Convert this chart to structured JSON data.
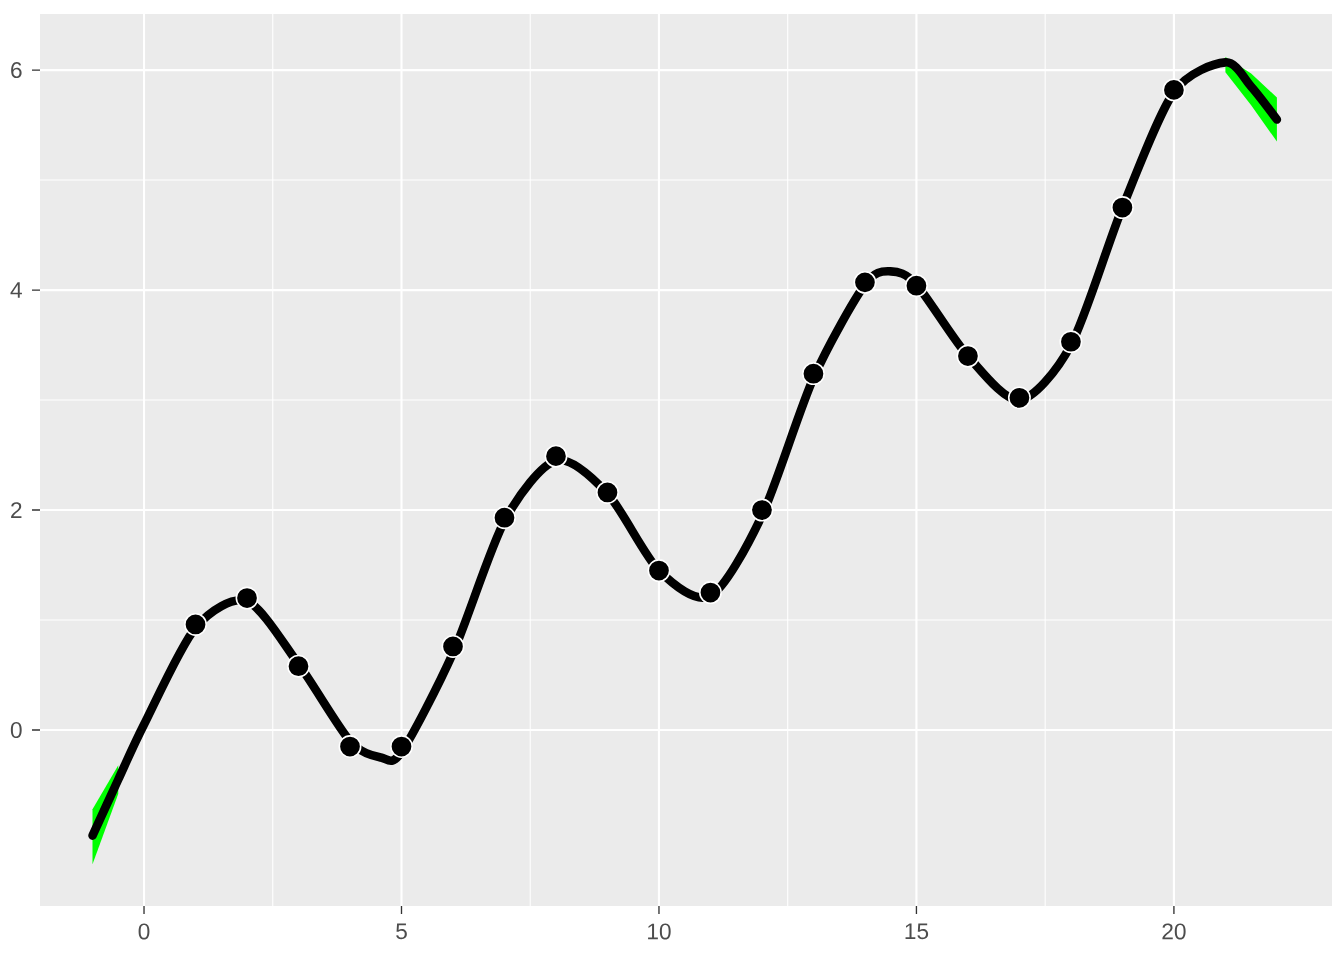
{
  "chart_data": {
    "type": "scatter",
    "xlim": [
      -2.02,
      23.07
    ],
    "ylim": [
      -1.6,
      6.51
    ],
    "xticks": [
      0,
      5,
      10,
      15,
      20
    ],
    "yticks": [
      0,
      2,
      4,
      6
    ],
    "grid": true,
    "series": [
      {
        "type": "line",
        "color": "#000000",
        "line_style": "solid",
        "marker": "none",
        "x": [
          -1,
          -0.5,
          0,
          1,
          2,
          3,
          4,
          4.6,
          5,
          6,
          7,
          8,
          9,
          10,
          11,
          12,
          13,
          14,
          14.5,
          15,
          16,
          17,
          18,
          19,
          20,
          21,
          21.5,
          22
        ],
        "values": [
          -0.96,
          -0.45,
          0.05,
          0.93,
          1.17,
          0.6,
          -0.1,
          -0.25,
          -0.2,
          0.7,
          1.9,
          2.45,
          2.15,
          1.45,
          1.22,
          1.95,
          3.2,
          4.05,
          4.17,
          4.05,
          3.4,
          3.0,
          3.5,
          4.75,
          5.8,
          6.07,
          5.85,
          5.55
        ],
        "lower": [
          -1.22,
          -0.58,
          null,
          null,
          null,
          null,
          null,
          null,
          null,
          null,
          null,
          null,
          null,
          null,
          null,
          null,
          null,
          null,
          null,
          null,
          null,
          null,
          null,
          null,
          null,
          5.98,
          5.68,
          5.35
        ],
        "upper": [
          -0.72,
          -0.32,
          null,
          null,
          null,
          null,
          null,
          null,
          null,
          null,
          null,
          null,
          null,
          null,
          null,
          null,
          null,
          null,
          null,
          null,
          null,
          null,
          null,
          null,
          null,
          6.12,
          5.97,
          5.75
        ]
      },
      {
        "color": "#000000",
        "marker": "circle",
        "x": [
          1,
          2,
          3,
          4,
          5,
          6,
          7,
          8,
          9,
          10,
          11,
          12,
          13,
          14,
          15,
          16,
          17,
          18,
          19,
          20
        ],
        "values": [
          0.96,
          1.2,
          0.58,
          -0.15,
          -0.15,
          0.76,
          1.93,
          2.49,
          2.16,
          1.45,
          1.25,
          2.0,
          3.24,
          4.07,
          4.04,
          3.4,
          3.02,
          3.53,
          4.75,
          5.82
        ]
      }
    ]
  }
}
